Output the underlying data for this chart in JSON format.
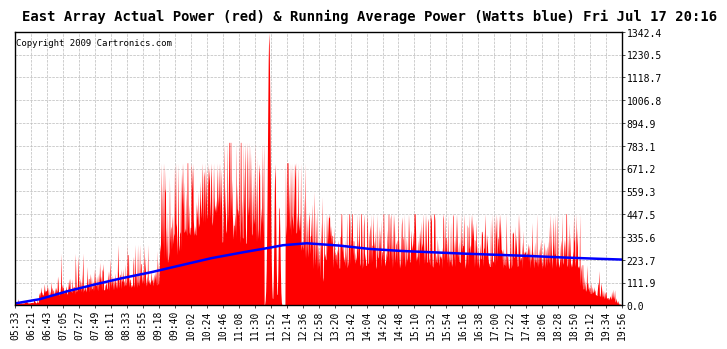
{
  "title": "East Array Actual Power (red) & Running Average Power (Watts blue) Fri Jul 17 20:16",
  "copyright": "Copyright 2009 Cartronics.com",
  "yticks": [
    0.0,
    111.9,
    223.7,
    335.6,
    447.5,
    559.3,
    671.2,
    783.1,
    894.9,
    1006.8,
    1118.7,
    1230.5,
    1342.4
  ],
  "ymax": 1342.4,
  "ymin": 0.0,
  "title_fontsize": 10,
  "copyright_fontsize": 6.5,
  "tick_fontsize": 7,
  "background_color": "#ffffff",
  "grid_color": "#bbbbbb",
  "fill_color": "#ff0000",
  "line_color": "#0000ff",
  "x_labels": [
    "05:33",
    "06:21",
    "06:43",
    "07:05",
    "07:27",
    "07:49",
    "08:11",
    "08:33",
    "08:55",
    "09:18",
    "09:40",
    "10:02",
    "10:24",
    "10:46",
    "11:08",
    "11:30",
    "11:52",
    "12:14",
    "12:36",
    "12:58",
    "13:20",
    "13:42",
    "14:04",
    "14:26",
    "14:48",
    "15:10",
    "15:32",
    "15:54",
    "16:16",
    "16:38",
    "17:00",
    "17:22",
    "17:44",
    "18:06",
    "18:28",
    "18:50",
    "19:12",
    "19:34",
    "19:56"
  ],
  "blue_x": [
    0.0,
    0.04,
    0.08,
    0.12,
    0.17,
    0.22,
    0.27,
    0.32,
    0.37,
    0.41,
    0.44,
    0.48,
    0.53,
    0.58,
    0.63,
    0.68,
    0.73,
    0.78,
    0.83,
    0.88,
    0.93,
    1.0
  ],
  "blue_y": [
    10,
    30,
    65,
    95,
    130,
    160,
    195,
    230,
    258,
    278,
    295,
    305,
    295,
    278,
    268,
    262,
    255,
    250,
    245,
    238,
    232,
    225
  ]
}
